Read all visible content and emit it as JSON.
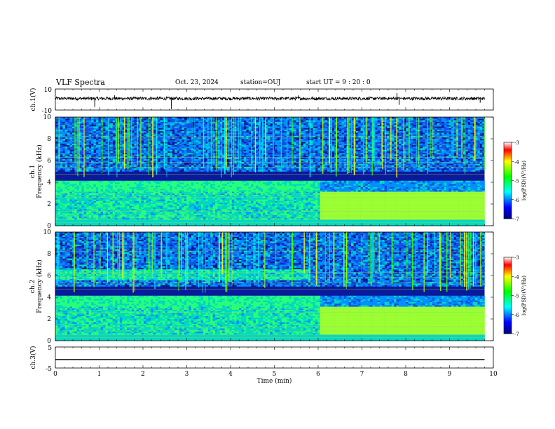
{
  "header": {
    "title": "VLF Spectra",
    "date": "Oct. 23, 2024",
    "station": "station=OUJ",
    "start": "start  UT  =   9  : 20 : 0"
  },
  "chart_data": [
    {
      "type": "line",
      "ylabel": "ch.1(V)",
      "ylim": [
        -10,
        10
      ],
      "ytick_labels": [
        "10",
        "-10"
      ],
      "series": [
        {
          "values": [
            -1.5,
            1.5
          ],
          "description_of_trace": ""
        }
      ],
      "mean_level": 1.0,
      "noise_amplitude": 1.5
    },
    {
      "type": "heatmap",
      "ylabel": "ch.1\nFrequency (kHz)",
      "ylim": [
        0,
        10
      ],
      "yticks": [
        "0",
        "2",
        "4",
        "6",
        "8",
        "10"
      ],
      "colorbar": {
        "label": "log(PSD)(V²/Hz)",
        "range": [
          -7,
          -3
        ],
        "ticks": [
          "-3",
          "-4",
          "-5",
          "-6",
          "-7"
        ]
      }
    },
    {
      "type": "heatmap",
      "ylabel": "ch.2\nFrequency (kHz)",
      "ylim": [
        0,
        10
      ],
      "yticks": [
        "0",
        "2",
        "4",
        "6",
        "8",
        "10"
      ],
      "colorbar": {
        "label": "log(PSD)(V²/Hz)",
        "range": [
          -7,
          -3
        ],
        "ticks": [
          "-3",
          "-4",
          "-5",
          "-6",
          "-7"
        ]
      }
    },
    {
      "type": "line",
      "ylabel": "ch.3(V)",
      "ylim": [
        -5,
        5
      ],
      "ytick_labels": [
        "5",
        "-5"
      ],
      "series": [
        {
          "values": [
            -1,
            -1
          ]
        }
      ]
    }
  ],
  "xaxis": {
    "label": "Time  (min)",
    "range": [
      0,
      10
    ],
    "ticks": [
      "0",
      "1",
      "2",
      "3",
      "4",
      "5",
      "6",
      "7",
      "8",
      "9",
      "10"
    ],
    "data_end": 9.8
  }
}
